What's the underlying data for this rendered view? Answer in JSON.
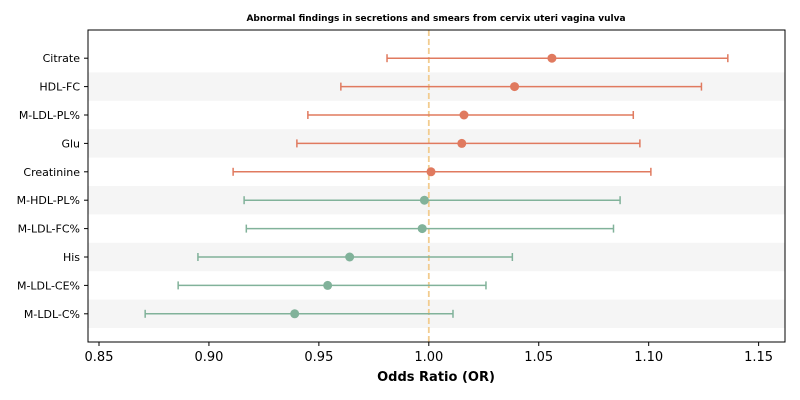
{
  "chart_data": {
    "type": "forest",
    "title": "Abnormal findings in secretions and smears from cervix uteri vagina vulva",
    "xlabel": "Odds Ratio (OR)",
    "ylabel": "",
    "xlim": [
      0.845,
      1.162
    ],
    "xticks": [
      "0.85",
      "0.90",
      "0.95",
      "1.00",
      "1.05",
      "1.10",
      "1.15"
    ],
    "reference_line": 1.0,
    "colors": {
      "increased": "#e07a5f",
      "decreased": "#81b29a",
      "reference": "#f2cc8f",
      "band": "#f5f5f5"
    },
    "rows": [
      {
        "label": "Citrate",
        "or": 1.056,
        "lower": 0.981,
        "upper": 1.136
      },
      {
        "label": "HDL-FC",
        "or": 1.039,
        "lower": 0.96,
        "upper": 1.124
      },
      {
        "label": "M-LDL-PL%",
        "or": 1.016,
        "lower": 0.945,
        "upper": 1.093
      },
      {
        "label": "Glu",
        "or": 1.015,
        "lower": 0.94,
        "upper": 1.096
      },
      {
        "label": "Creatinine",
        "or": 1.001,
        "lower": 0.911,
        "upper": 1.101
      },
      {
        "label": "M-HDL-PL%",
        "or": 0.998,
        "lower": 0.916,
        "upper": 1.087
      },
      {
        "label": "M-LDL-FC%",
        "or": 0.997,
        "lower": 0.917,
        "upper": 1.084
      },
      {
        "label": "His",
        "or": 0.964,
        "lower": 0.895,
        "upper": 1.038
      },
      {
        "label": "M-LDL-CE%",
        "or": 0.954,
        "lower": 0.886,
        "upper": 1.026
      },
      {
        "label": "M-LDL-C%",
        "or": 0.939,
        "lower": 0.871,
        "upper": 1.011
      }
    ]
  }
}
